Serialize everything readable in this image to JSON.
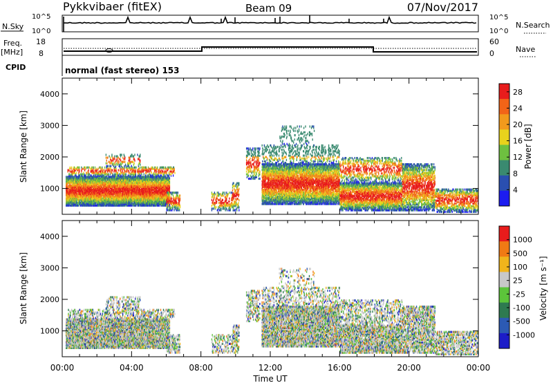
{
  "header": {
    "radar": "Pykkvibaer (fitEX)",
    "beam": "Beam 09",
    "date": "07/Nov/2017"
  },
  "noise_panel": {
    "left_label": "N.Sky",
    "right_label": "N.Search",
    "left_ticks": [
      "10^5",
      "10^0"
    ],
    "right_ticks": [
      "10^5",
      "10^0"
    ]
  },
  "freq_panel": {
    "left_label_1": "Freq.",
    "left_label_2": "[MHz]",
    "right_label": "Nave",
    "left_ticks": [
      "18",
      "8"
    ],
    "right_ticks": [
      "60",
      "0"
    ]
  },
  "cpid": {
    "label": "CPID",
    "value": "normal (fast stereo) 153"
  },
  "x_axis": {
    "title": "Time UT",
    "ticks": [
      "00:00",
      "04:00",
      "08:00",
      "12:00",
      "16:00",
      "20:00",
      "00:00"
    ]
  },
  "chart_data": [
    {
      "type": "heatmap",
      "panel": "power",
      "xlabel": "Time UT",
      "ylabel": "Slant Range [km]",
      "x_range_hours": [
        0,
        24
      ],
      "y_ticks": [
        1000,
        2000,
        3000,
        4000
      ],
      "ylim": [
        180,
        4500
      ],
      "colorbar_label": "Power [dB]",
      "colorbar_ticks": [
        4,
        8,
        12,
        16,
        20,
        24,
        28
      ],
      "colorbar_range": [
        0,
        30
      ],
      "colors": [
        "#1c1cf0",
        "#2a4fb0",
        "#3a8a70",
        "#6ec040",
        "#e8d21c",
        "#f29a1c",
        "#f26418",
        "#e81c1c"
      ]
    },
    {
      "type": "heatmap",
      "panel": "velocity",
      "xlabel": "Time UT",
      "ylabel": "Slant Range [km]",
      "x_range_hours": [
        0,
        24
      ],
      "y_ticks": [
        1000,
        2000,
        3000,
        4000
      ],
      "ylim": [
        180,
        4500
      ],
      "colorbar_label": "Velocity [m s⁻¹]",
      "colorbar_ticks": [
        1000,
        500,
        100,
        25,
        -25,
        -100,
        -500,
        -1000
      ],
      "colors": [
        "#1c1cc8",
        "#2c5ab4",
        "#2e7a50",
        "#5cc43a",
        "#c8c8c8",
        "#f0b41c",
        "#f07a14",
        "#e81c1c"
      ]
    }
  ]
}
